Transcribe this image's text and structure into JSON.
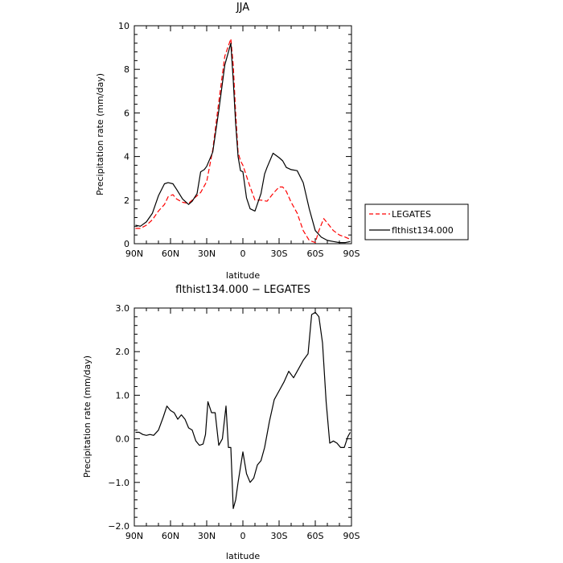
{
  "chart_data": [
    {
      "type": "line",
      "title": "JJA",
      "xlabel": "latitude",
      "ylabel": "Precipitation rate (mm/day)",
      "xlim": [
        90,
        -90
      ],
      "ylim": [
        0,
        10
      ],
      "x_tick_values": [
        90,
        60,
        30,
        0,
        -30,
        -60,
        -90
      ],
      "x_tick_labels": [
        "90N",
        "60N",
        "30N",
        "0",
        "30S",
        "60S",
        "90S"
      ],
      "y_tick_values": [
        0,
        2,
        4,
        6,
        8,
        10
      ],
      "y_tick_labels": [
        "0",
        "2",
        "4",
        "6",
        "8",
        "10"
      ],
      "legend": {
        "placement": "outside-right"
      },
      "series": [
        {
          "name": "LEGATES",
          "color": "#ff0000",
          "dash": "dashed",
          "x": [
            89,
            85,
            80,
            75,
            70,
            65,
            62,
            58,
            55,
            50,
            45,
            40,
            35,
            30,
            25,
            20,
            15,
            10,
            8,
            6,
            4,
            2,
            0,
            -3,
            -6,
            -10,
            -15,
            -20,
            -25,
            -30,
            -33,
            -36,
            -40,
            -45,
            -50,
            -55,
            -60,
            -63,
            -67,
            -70,
            -75,
            -80,
            -85,
            -89
          ],
          "y": [
            0.7,
            0.7,
            0.85,
            1.1,
            1.5,
            1.8,
            2.15,
            2.25,
            2.05,
            1.9,
            1.85,
            2.1,
            2.35,
            2.85,
            4.3,
            6.5,
            8.6,
            9.4,
            8.2,
            6.0,
            4.2,
            3.8,
            3.6,
            3.1,
            2.6,
            2.0,
            2.0,
            1.95,
            2.3,
            2.6,
            2.6,
            2.4,
            1.9,
            1.4,
            0.6,
            0.15,
            0.05,
            0.6,
            1.15,
            0.95,
            0.6,
            0.4,
            0.3,
            0.2
          ]
        },
        {
          "name": "flthist134.000",
          "color": "#000000",
          "dash": "solid",
          "x": [
            89,
            85,
            80,
            75,
            70,
            65,
            62,
            58,
            55,
            50,
            45,
            42,
            38,
            35,
            32,
            30,
            25,
            20,
            15,
            10,
            8,
            6,
            4,
            2,
            0,
            -3,
            -6,
            -10,
            -15,
            -18,
            -20,
            -25,
            -30,
            -33,
            -36,
            -40,
            -45,
            -50,
            -55,
            -60,
            -65,
            -70,
            -75,
            -80,
            -85,
            -89
          ],
          "y": [
            0.85,
            0.8,
            1.0,
            1.4,
            2.2,
            2.75,
            2.8,
            2.75,
            2.5,
            2.05,
            1.8,
            1.95,
            2.3,
            3.3,
            3.4,
            3.55,
            4.2,
            6.1,
            8.2,
            9.2,
            7.5,
            5.5,
            4.0,
            3.35,
            3.3,
            2.1,
            1.6,
            1.5,
            2.3,
            3.2,
            3.5,
            4.15,
            3.95,
            3.8,
            3.5,
            3.4,
            3.35,
            2.8,
            1.6,
            0.6,
            0.3,
            0.15,
            0.1,
            0.05,
            0.05,
            0.1
          ]
        }
      ]
    },
    {
      "type": "line",
      "title": "flthist134.000 − LEGATES",
      "xlabel": "latitude",
      "ylabel": "Precipitation rate (mm/day)",
      "xlim": [
        90,
        -90
      ],
      "ylim": [
        -2.0,
        3.0
      ],
      "x_tick_values": [
        90,
        60,
        30,
        0,
        -30,
        -60,
        -90
      ],
      "x_tick_labels": [
        "90N",
        "60N",
        "30N",
        "0",
        "30S",
        "60S",
        "90S"
      ],
      "y_tick_values": [
        -2,
        -1,
        0,
        1,
        2,
        3
      ],
      "y_tick_labels": [
        "−2.0",
        "−1.0",
        "0.0",
        "1.0",
        "2.0",
        "3.0"
      ],
      "series": [
        {
          "color": "#000000",
          "dash": "solid",
          "x": [
            89,
            86,
            83,
            80,
            77,
            74,
            70,
            66,
            63,
            60,
            57,
            54,
            51,
            48,
            45,
            42,
            39,
            36,
            33,
            31,
            29,
            26,
            23,
            20,
            17,
            14,
            12,
            10,
            8,
            6,
            4,
            2,
            0,
            -3,
            -6,
            -9,
            -12,
            -15,
            -18,
            -22,
            -26,
            -30,
            -34,
            -38,
            -42,
            -46,
            -50,
            -54,
            -57,
            -60,
            -63,
            -66,
            -69,
            -72,
            -75,
            -78,
            -81,
            -84,
            -87,
            -89
          ],
          "y": [
            0.15,
            0.15,
            0.1,
            0.08,
            0.1,
            0.08,
            0.2,
            0.5,
            0.75,
            0.65,
            0.6,
            0.45,
            0.55,
            0.45,
            0.25,
            0.2,
            -0.05,
            -0.15,
            -0.12,
            0.1,
            0.85,
            0.6,
            0.6,
            -0.15,
            0.0,
            0.75,
            -0.2,
            -0.2,
            -1.6,
            -1.4,
            -1.0,
            -0.65,
            -0.3,
            -0.8,
            -1.0,
            -0.9,
            -0.6,
            -0.5,
            -0.2,
            0.4,
            0.9,
            1.1,
            1.3,
            1.55,
            1.4,
            1.6,
            1.8,
            1.95,
            2.85,
            2.9,
            2.8,
            2.2,
            0.85,
            -0.1,
            -0.05,
            -0.1,
            -0.2,
            -0.2,
            0.05,
            0.15
          ]
        }
      ]
    }
  ]
}
